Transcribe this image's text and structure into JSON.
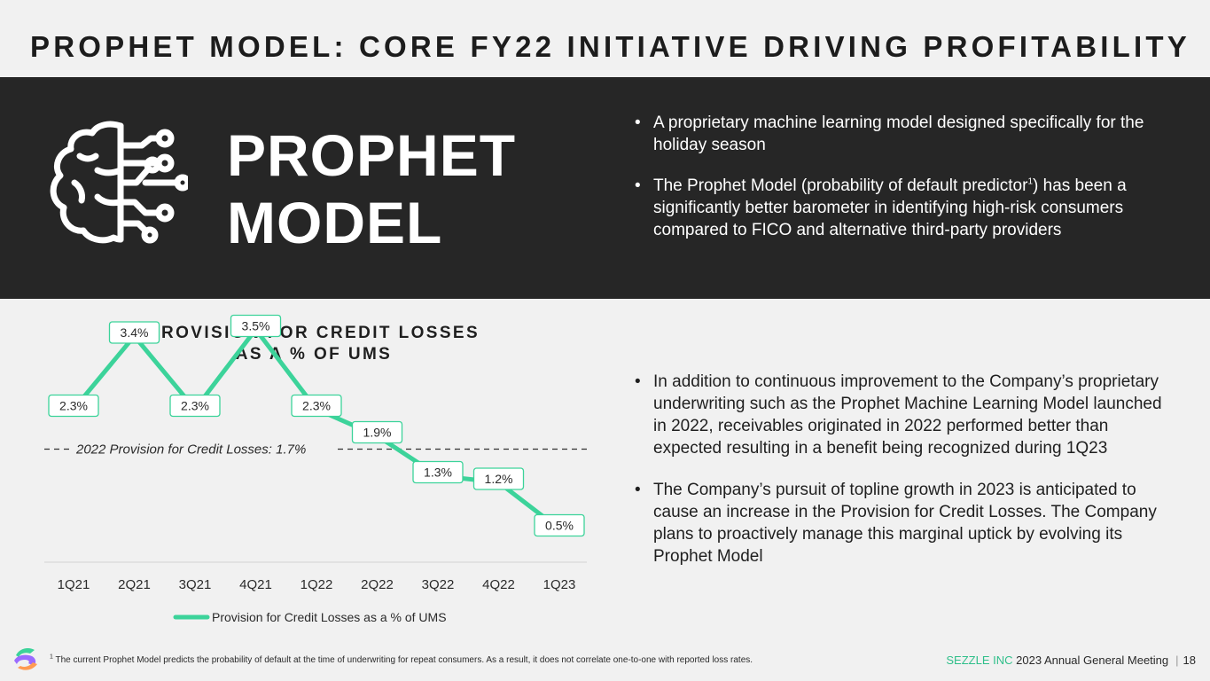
{
  "title": "PROPHET MODEL: CORE FY22 INITIATIVE DRIVING PROFITABILITY",
  "hero": {
    "line1": "PROPHET",
    "line2": "MODEL"
  },
  "top_bullets": [
    {
      "text": "A proprietary machine learning model designed specifically for the holiday season"
    },
    {
      "text_before": "The Prophet Model (probability of default predictor",
      "sup": "1",
      "text_after": ") has been a significantly better barometer in identifying high-risk consumers compared to FICO and alternative third-party providers"
    }
  ],
  "bottom_bullets": [
    "In addition to continuous improvement to the Company’s proprietary underwriting such as the Prophet Machine Learning Model launched in 2022, receivables originated in 2022 performed better than expected resulting in a benefit being recognized during 1Q23",
    "The Company’s pursuit of topline growth in 2023 is anticipated to cause an increase in the Provision for Credit Losses. The Company plans to proactively manage this marginal uptick by evolving its Prophet Model"
  ],
  "chart_data": {
    "type": "line",
    "title": "PROVISION FOR CREDIT LOSSES AS A % OF UMS",
    "title_lines": [
      "PROVISION FOR CREDIT LOSSES",
      "AS A % OF UMS"
    ],
    "categories": [
      "1Q21",
      "2Q21",
      "3Q21",
      "4Q21",
      "1Q22",
      "2Q22",
      "3Q22",
      "4Q22",
      "1Q23"
    ],
    "series": [
      {
        "name": "Provision for Credit Losses as a % of UMS",
        "values": [
          2.3,
          3.4,
          2.3,
          3.5,
          2.3,
          1.9,
          1.3,
          1.2,
          0.5
        ],
        "labels": [
          "2.3%",
          "3.4%",
          "2.3%",
          "3.5%",
          "2.3%",
          "1.9%",
          "1.3%",
          "1.2%",
          "0.5%"
        ]
      }
    ],
    "reference_line": {
      "value": 1.7,
      "label": "2022 Provision for Credit Losses: 1.7%",
      "style": "dashed"
    },
    "ylim": [
      0,
      4.0
    ],
    "xlabel": "",
    "ylabel": "",
    "legend": "bottom-center",
    "grid": false,
    "color": "#3cd39a"
  },
  "footnote": {
    "sup": "1",
    "text": "The current Prophet Model predicts the probability of default at the time of underwriting for repeat consumers. As a result, it does not correlate one-to-one with reported loss rates."
  },
  "footer": {
    "brand": "SEZZLE INC",
    "event": "2023 Annual General Meeting",
    "separator": "|",
    "page": "18"
  },
  "colors": {
    "accent": "#3cd39a",
    "band": "#262626",
    "background": "#f1f1f1"
  }
}
